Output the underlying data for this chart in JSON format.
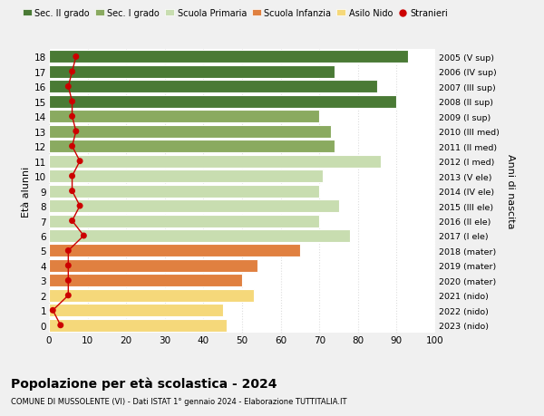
{
  "ages": [
    0,
    1,
    2,
    3,
    4,
    5,
    6,
    7,
    8,
    9,
    10,
    11,
    12,
    13,
    14,
    15,
    16,
    17,
    18
  ],
  "bar_values": [
    46,
    45,
    53,
    50,
    54,
    65,
    78,
    70,
    75,
    70,
    71,
    86,
    74,
    73,
    70,
    90,
    85,
    74,
    93
  ],
  "bar_colors": [
    "#f5d87a",
    "#f5d87a",
    "#f5d87a",
    "#e08040",
    "#e08040",
    "#e08040",
    "#c8ddb0",
    "#c8ddb0",
    "#c8ddb0",
    "#c8ddb0",
    "#c8ddb0",
    "#c8ddb0",
    "#8aaa60",
    "#8aaa60",
    "#8aaa60",
    "#4a7a35",
    "#4a7a35",
    "#4a7a35",
    "#4a7a35"
  ],
  "stranieri_values": [
    3,
    1,
    5,
    5,
    5,
    5,
    9,
    6,
    8,
    6,
    6,
    8,
    6,
    7,
    6,
    6,
    5,
    6,
    7
  ],
  "right_labels": [
    "2023 (nido)",
    "2022 (nido)",
    "2021 (nido)",
    "2020 (mater)",
    "2019 (mater)",
    "2018 (mater)",
    "2017 (I ele)",
    "2016 (II ele)",
    "2015 (III ele)",
    "2014 (IV ele)",
    "2013 (V ele)",
    "2012 (I med)",
    "2011 (II med)",
    "2010 (III med)",
    "2009 (I sup)",
    "2008 (II sup)",
    "2007 (III sup)",
    "2006 (IV sup)",
    "2005 (V sup)"
  ],
  "legend_labels": [
    "Sec. II grado",
    "Sec. I grado",
    "Scuola Primaria",
    "Scuola Infanzia",
    "Asilo Nido",
    "Stranieri"
  ],
  "legend_colors": [
    "#4a7a35",
    "#8aaa60",
    "#c8ddb0",
    "#e08040",
    "#f5d87a",
    "#cc0000"
  ],
  "ylabel_left": "Età alunni",
  "ylabel_right": "Anni di nascita",
  "title": "Popolazione per età scolastica - 2024",
  "subtitle": "COMUNE DI MUSSOLENTE (VI) - Dati ISTAT 1° gennaio 2024 - Elaborazione TUTTITALIA.IT",
  "fig_bg_color": "#f0f0f0",
  "plot_bg_color": "#ffffff",
  "xlim": [
    0,
    100
  ],
  "grid_color": "#dddddd",
  "stranieri_color": "#cc0000",
  "stranieri_marker_size": 5
}
